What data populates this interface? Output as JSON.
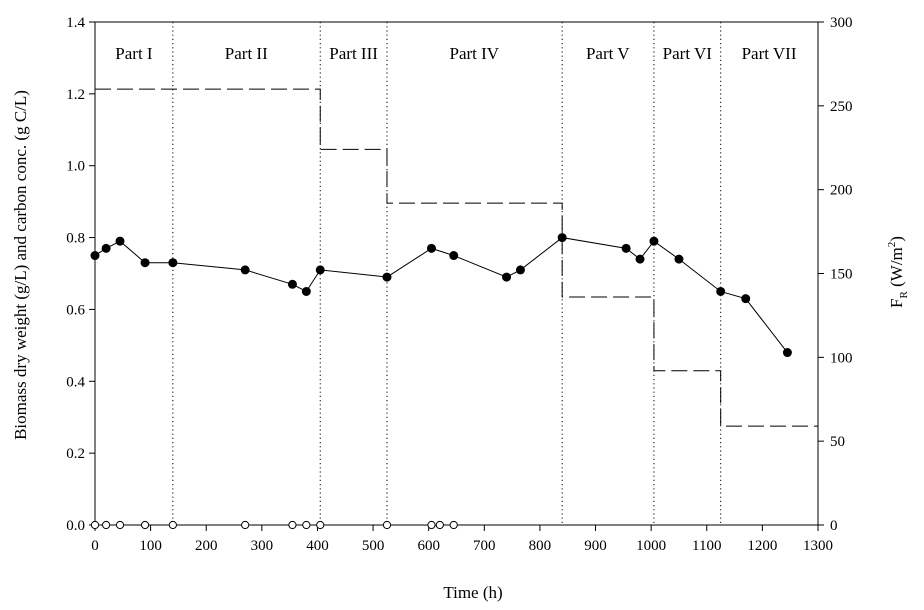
{
  "chart_data": {
    "type": "line",
    "title": "",
    "xlabel": "Time (h)",
    "ylabel_left": "Biomass dry weight (g/L) and carbon conc. (g C/L)",
    "ylabel_right_main": "F",
    "ylabel_right_sub": "R",
    "ylabel_right_rest": " (W/m",
    "ylabel_right_sup": "2",
    "ylabel_right_end": ")",
    "xlim": [
      0,
      1300
    ],
    "ylim_left": [
      0,
      1.4
    ],
    "ylim_right": [
      0,
      300
    ],
    "x_ticks": [
      0,
      100,
      200,
      300,
      400,
      500,
      600,
      700,
      800,
      900,
      1000,
      1100,
      1200,
      1300
    ],
    "y_left_ticks": [
      "0.0",
      "0.2",
      "0.4",
      "0.6",
      "0.8",
      "1.0",
      "1.2",
      "1.4"
    ],
    "y_right_ticks": [
      "0",
      "50",
      "100",
      "150",
      "200",
      "250",
      "300"
    ],
    "grid": false,
    "part_boundaries": [
      140,
      405,
      525,
      840,
      1005,
      1125
    ],
    "parts": [
      {
        "label": "Part I",
        "x": 70
      },
      {
        "label": "Part II",
        "x": 272
      },
      {
        "label": "Part III",
        "x": 465
      },
      {
        "label": "Part IV",
        "x": 682
      },
      {
        "label": "Part V",
        "x": 922
      },
      {
        "label": "Part VI",
        "x": 1065
      },
      {
        "label": "Part VII",
        "x": 1212
      }
    ],
    "series": [
      {
        "marker": "filled-circle",
        "axis": "left",
        "x": [
          0,
          20,
          45,
          90,
          140,
          270,
          355,
          380,
          405,
          525,
          605,
          645,
          740,
          765,
          840,
          955,
          980,
          1005,
          1050,
          1125,
          1170,
          1245
        ],
        "y": [
          0.75,
          0.77,
          0.79,
          0.73,
          0.73,
          0.71,
          0.67,
          0.65,
          0.71,
          0.69,
          0.77,
          0.75,
          0.69,
          0.71,
          0.8,
          0.77,
          0.74,
          0.79,
          0.74,
          0.65,
          0.63,
          0.48
        ]
      },
      {
        "marker": "open-circle",
        "axis": "left",
        "x": [
          0,
          20,
          45,
          90,
          140,
          270,
          355,
          380,
          405,
          525,
          605,
          620,
          645
        ],
        "y": [
          0,
          0,
          0,
          0,
          0,
          0,
          0,
          0,
          0,
          0,
          0,
          0,
          0
        ]
      },
      {
        "style": "dashed-step",
        "axis": "right",
        "x": [
          0,
          405,
          405,
          525,
          525,
          840,
          840,
          1005,
          1005,
          1125,
          1125,
          1300
        ],
        "y": [
          260,
          260,
          224,
          224,
          192,
          192,
          136,
          136,
          92,
          92,
          59,
          59
        ]
      }
    ]
  }
}
